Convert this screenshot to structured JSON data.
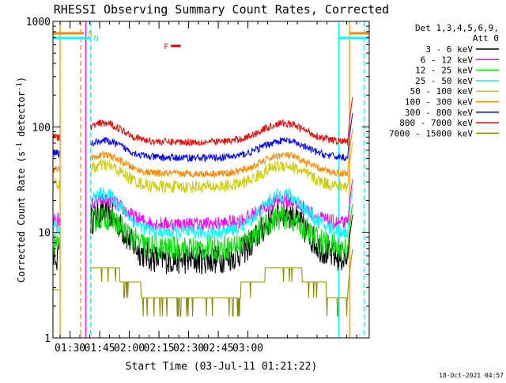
{
  "chart_data": {
    "type": "line",
    "title": "RHESSI Observing Summary Count Rates, Corrected",
    "xlabel": "Start Time (03-Jul-11 01:21:22)",
    "ylabel_main": "Corrected Count Rate (s",
    "ylabel_sup1": "-1",
    "ylabel_mid": " detector",
    "ylabel_sup2": "-1",
    "ylabel_end": ")",
    "x_ticks": [
      "01:30",
      "01:45",
      "02:00",
      "02:15",
      "02:30",
      "02:45",
      "03:00"
    ],
    "y_ticks": [
      "1",
      "10",
      "100",
      "1000"
    ],
    "yscale": "log",
    "ylim": [
      1,
      1000
    ],
    "xlim_min": [
      21.37,
      181.37
    ],
    "legend_header": [
      "Det 1,3,4,5,6,9,",
      "Att 0"
    ],
    "legend_placement": "right",
    "series": [
      {
        "name": "3 - 6 keV",
        "color": "#000000",
        "base": 5.5,
        "amp": 2.8,
        "noise": 0.14
      },
      {
        "name": "6 - 12 keV",
        "color": "#ff00ff",
        "base": 12,
        "amp": 1.7,
        "noise": 0.07
      },
      {
        "name": "12 - 25 keV",
        "color": "#00dd00",
        "base": 7,
        "amp": 2.0,
        "noise": 0.12
      },
      {
        "name": "25 - 50 keV",
        "color": "#00ffff",
        "base": 10,
        "amp": 2.3,
        "noise": 0.07
      },
      {
        "name": "50 - 100 keV",
        "color": "#cccc00",
        "base": 27,
        "amp": 1.6,
        "noise": 0.06
      },
      {
        "name": "100 - 300 keV",
        "color": "#ff8800",
        "base": 36,
        "amp": 1.5,
        "noise": 0.035
      },
      {
        "name": "300 - 800 keV",
        "color": "#0000ff",
        "base": 51,
        "amp": 1.45,
        "noise": 0.035
      },
      {
        "name": "800 - 7000 keV",
        "color": "#ee0000",
        "base": 72,
        "amp": 1.5,
        "noise": 0.035
      },
      {
        "name": "7000 - 15000 keV",
        "color": "#888800",
        "base": 2.6,
        "amp": 1.8,
        "noise": 0.0
      }
    ],
    "flag_markers": [
      {
        "label": "S",
        "color": "#ff8800",
        "t_start": 21.37,
        "t_end": 37
      },
      {
        "label": "N",
        "color": "#00ffff",
        "t_start": 21.37,
        "t_end": 40
      },
      {
        "label": "F",
        "color": "#ee0000",
        "t_start": 81,
        "t_end": 86
      }
    ],
    "vertical_lines": [
      {
        "t": 25,
        "color": "#ff8800",
        "dash": false
      },
      {
        "t": 35.4,
        "color": "#ff8800",
        "dash": true
      },
      {
        "t": 38,
        "color": "#ff00ff",
        "dash": false
      },
      {
        "t": 40.4,
        "color": "#00ffff",
        "dash": true
      },
      {
        "t": 166,
        "color": "#00ffff",
        "dash": false
      },
      {
        "t": 171.4,
        "color": "#ff8800",
        "dash": false
      },
      {
        "t": 178.9,
        "color": "#00ffff",
        "dash": true
      }
    ]
  },
  "footer": {
    "timestamp": "18-Oct-2021 04:57"
  }
}
